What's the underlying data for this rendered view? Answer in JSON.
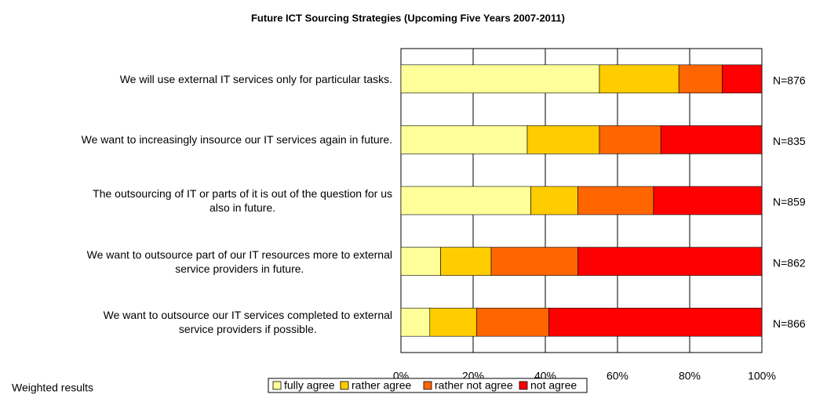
{
  "chart_data": {
    "type": "stacked_barh",
    "title": "Future ICT Sourcing Strategies (Upcoming Five Years 2007-2011)",
    "categories": [
      "We will use external IT services only for particular tasks.",
      "We want to increasingly insource our IT services again in future.",
      "The outsourcing of IT or parts of it is out of the question for us\nalso in  future.",
      "We want to outsource part of our IT resources more to external\nservice providers in future.",
      "We want to outsource our IT services completed to external\nservice providers if possible."
    ],
    "series": [
      {
        "name": "fully agree",
        "color": "#ffff99",
        "values": [
          55,
          35,
          36,
          11,
          8
        ]
      },
      {
        "name": "rather agree",
        "color": "#ffcc00",
        "values": [
          22,
          20,
          13,
          14,
          13
        ]
      },
      {
        "name": "rather not agree",
        "color": "#ff6600",
        "values": [
          12,
          17,
          21,
          24,
          20
        ]
      },
      {
        "name": "not agree",
        "color": "#ff0000",
        "values": [
          11,
          28,
          30,
          51,
          59
        ]
      }
    ],
    "n_labels": [
      "N=876",
      "N=835",
      "N=859",
      "N=862",
      "N=866"
    ],
    "xlim": [
      0,
      100
    ],
    "xticks": [
      {
        "value": 0,
        "label": "0%"
      },
      {
        "value": 20,
        "label": "20%"
      },
      {
        "value": 40,
        "label": "40%"
      },
      {
        "value": 60,
        "label": "60%"
      },
      {
        "value": 80,
        "label": "80%"
      },
      {
        "value": 100,
        "label": "100%"
      }
    ],
    "grid": true,
    "note": "Weighted results",
    "legend": "bottom"
  }
}
